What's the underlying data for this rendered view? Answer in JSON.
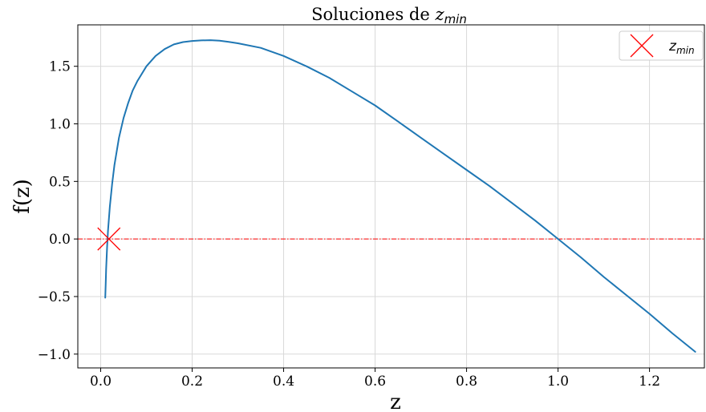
{
  "chart_data": {
    "type": "line",
    "title": {
      "prefix": "Soluciones de ",
      "var": "z",
      "subscript": "min"
    },
    "xlabel": "z",
    "ylabel": "f(z)",
    "xlim": [
      -0.05,
      1.32
    ],
    "ylim": [
      -1.12,
      1.86
    ],
    "xticks": [
      0.0,
      0.2,
      0.4,
      0.6,
      0.8,
      1.0,
      1.2
    ],
    "xtick_labels": [
      "0.0",
      "0.2",
      "0.4",
      "0.6",
      "0.8",
      "1.0",
      "1.2"
    ],
    "yticks": [
      -1.0,
      -0.5,
      0.0,
      0.5,
      1.0,
      1.5
    ],
    "ytick_labels": [
      "−1.0",
      "−0.5",
      "0.0",
      "0.5",
      "1.0",
      "1.5"
    ],
    "grid": true,
    "series": [
      {
        "color": "#1f77b4",
        "x": [
          0.01,
          0.011,
          0.012,
          0.014,
          0.016,
          0.018,
          0.02,
          0.025,
          0.03,
          0.04,
          0.05,
          0.06,
          0.07,
          0.08,
          0.1,
          0.12,
          0.14,
          0.16,
          0.18,
          0.2,
          0.22,
          0.24,
          0.26,
          0.28,
          0.3,
          0.35,
          0.4,
          0.45,
          0.5,
          0.55,
          0.6,
          0.65,
          0.7,
          0.75,
          0.8,
          0.85,
          0.9,
          0.95,
          1.0,
          1.05,
          1.1,
          1.15,
          1.2,
          1.25,
          1.3
        ],
        "y": [
          -0.51,
          -0.38,
          -0.26,
          -0.07,
          0.07,
          0.18,
          0.28,
          0.48,
          0.64,
          0.88,
          1.05,
          1.18,
          1.29,
          1.37,
          1.5,
          1.59,
          1.65,
          1.69,
          1.71,
          1.72,
          1.725,
          1.727,
          1.722,
          1.712,
          1.7,
          1.66,
          1.59,
          1.5,
          1.4,
          1.28,
          1.16,
          1.02,
          0.88,
          0.74,
          0.6,
          0.46,
          0.31,
          0.16,
          0.0,
          -0.16,
          -0.33,
          -0.49,
          -0.65,
          -0.82,
          -0.98
        ]
      }
    ],
    "reference_line": {
      "y": 0.0,
      "color": "#ff0000",
      "style": "dash-dot"
    },
    "markers": [
      {
        "x": 0.018,
        "y": 0.0,
        "symbol": "x",
        "color": "#ff0000",
        "legend": {
          "var": "z",
          "subscript": "min"
        }
      }
    ],
    "legend_position": "top-right"
  }
}
